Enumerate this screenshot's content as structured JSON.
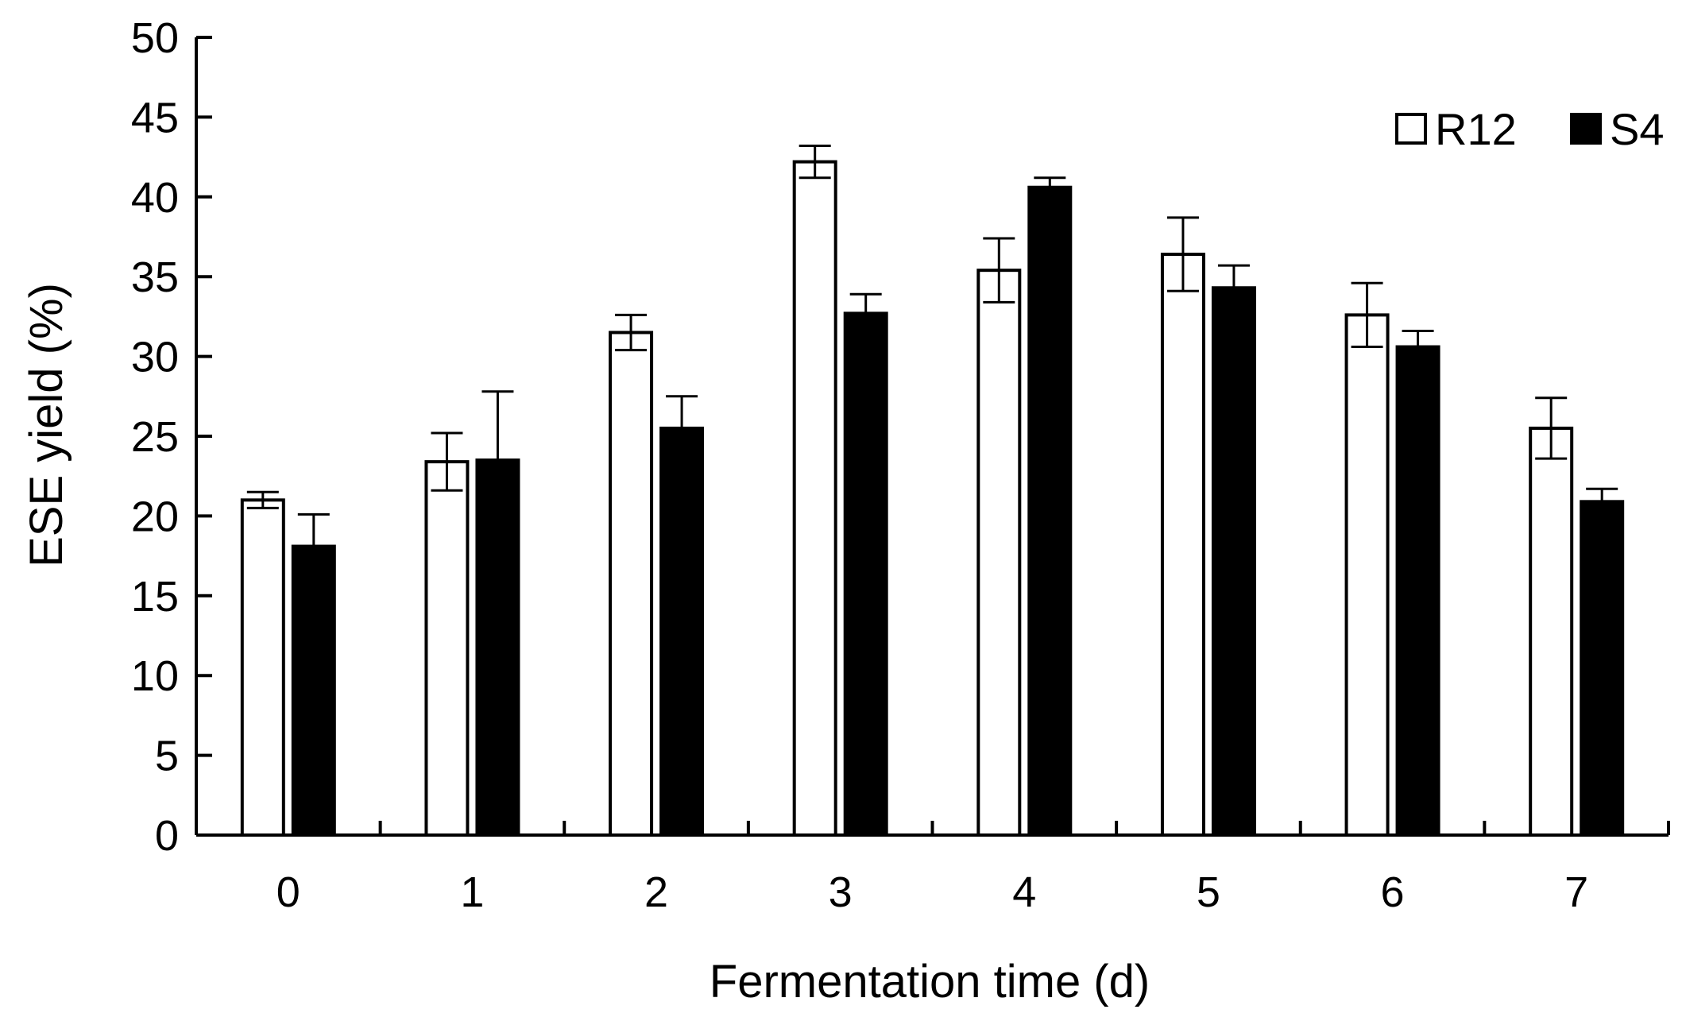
{
  "chart_data": {
    "type": "bar",
    "xlabel": "Fermentation time (d)",
    "ylabel": "ESE yield (%)",
    "ylim": [
      0,
      50
    ],
    "yticks": [
      0,
      5,
      10,
      15,
      20,
      25,
      30,
      35,
      40,
      45,
      50
    ],
    "categories": [
      "0",
      "1",
      "2",
      "3",
      "4",
      "5",
      "6",
      "7"
    ],
    "legend_position": "top-right",
    "grid": false,
    "series": [
      {
        "name": "R12",
        "fill": "#ffffff",
        "values": [
          21.0,
          23.4,
          31.5,
          42.2,
          35.4,
          36.4,
          32.6,
          25.5
        ],
        "errors": [
          0.5,
          1.8,
          1.1,
          1.0,
          2.0,
          2.3,
          2.0,
          1.9
        ]
      },
      {
        "name": "S4",
        "fill": "#000000",
        "values": [
          18.1,
          23.5,
          25.5,
          32.7,
          40.6,
          34.3,
          30.6,
          20.9
        ],
        "errors": [
          2.0,
          4.3,
          2.0,
          1.2,
          0.6,
          1.4,
          1.0,
          0.8
        ]
      }
    ]
  }
}
